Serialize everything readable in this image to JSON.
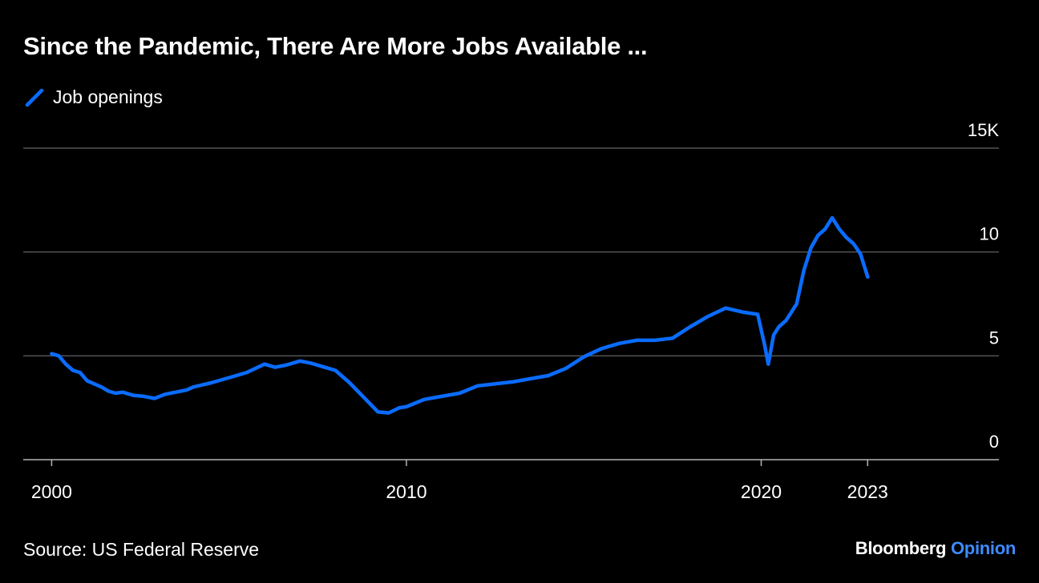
{
  "title": "Since the Pandemic, There Are More Jobs Available ...",
  "legend": {
    "label": "Job openings",
    "color": "#0a6cff"
  },
  "source": "Source: US Federal Reserve",
  "brand": {
    "name": "Bloomberg",
    "suffix": "Opinion",
    "suffix_color": "#3d8bff"
  },
  "colors": {
    "background": "#000000",
    "grid": "#555555",
    "axis": "#b3b3b3",
    "line": "#0a6cff"
  },
  "chart_data": {
    "type": "line",
    "title": "Since the Pandemic, There Are More Jobs Available ...",
    "xlabel": "",
    "ylabel": "",
    "xlim": [
      1999.2,
      2026.7
    ],
    "ylim": [
      0,
      15000
    ],
    "y_ticks": [
      0,
      5,
      10,
      15
    ],
    "y_tick_labels": [
      "0",
      "5",
      "10",
      "15K"
    ],
    "y_axis_side": "right",
    "x_ticks": [
      2000,
      2010,
      2020,
      2023
    ],
    "x_tick_labels": [
      "2000",
      "2010",
      "2020",
      "2023"
    ],
    "grid": true,
    "legend_position": "top-left",
    "series": [
      {
        "name": "Job openings",
        "color": "#0a6cff",
        "x": [
          2000.0,
          2000.2,
          2000.4,
          2000.6,
          2000.8,
          2001.0,
          2001.2,
          2001.4,
          2001.6,
          2001.8,
          2002.0,
          2002.3,
          2002.6,
          2002.9,
          2003.2,
          2003.5,
          2003.8,
          2004.0,
          2004.5,
          2005.0,
          2005.5,
          2006.0,
          2006.3,
          2006.6,
          2007.0,
          2007.3,
          2007.6,
          2008.0,
          2008.4,
          2008.8,
          2009.2,
          2009.5,
          2009.8,
          2010.0,
          2010.5,
          2011.0,
          2011.5,
          2012.0,
          2012.5,
          2013.0,
          2013.5,
          2014.0,
          2014.5,
          2015.0,
          2015.5,
          2016.0,
          2016.5,
          2017.0,
          2017.5,
          2018.0,
          2018.5,
          2019.0,
          2019.5,
          2019.9,
          2020.1,
          2020.2,
          2020.35,
          2020.5,
          2020.7,
          2021.0,
          2021.2,
          2021.4,
          2021.6,
          2021.8,
          2022.0,
          2022.2,
          2022.4,
          2022.6,
          2022.8,
          2023.0
        ],
        "y": [
          5100,
          5000,
          4600,
          4300,
          4200,
          3800,
          3650,
          3500,
          3300,
          3200,
          3250,
          3100,
          3050,
          2950,
          3150,
          3250,
          3350,
          3500,
          3700,
          3950,
          4200,
          4600,
          4450,
          4550,
          4750,
          4650,
          4500,
          4300,
          3700,
          3000,
          2300,
          2250,
          2500,
          2550,
          2900,
          3050,
          3200,
          3550,
          3650,
          3750,
          3900,
          4050,
          4400,
          4950,
          5350,
          5600,
          5750,
          5750,
          5850,
          6400,
          6900,
          7300,
          7100,
          7000,
          5500,
          4600,
          6000,
          6400,
          6700,
          7500,
          9100,
          10200,
          10800,
          11100,
          11650,
          11100,
          10700,
          10400,
          9900,
          8800
        ]
      }
    ]
  }
}
